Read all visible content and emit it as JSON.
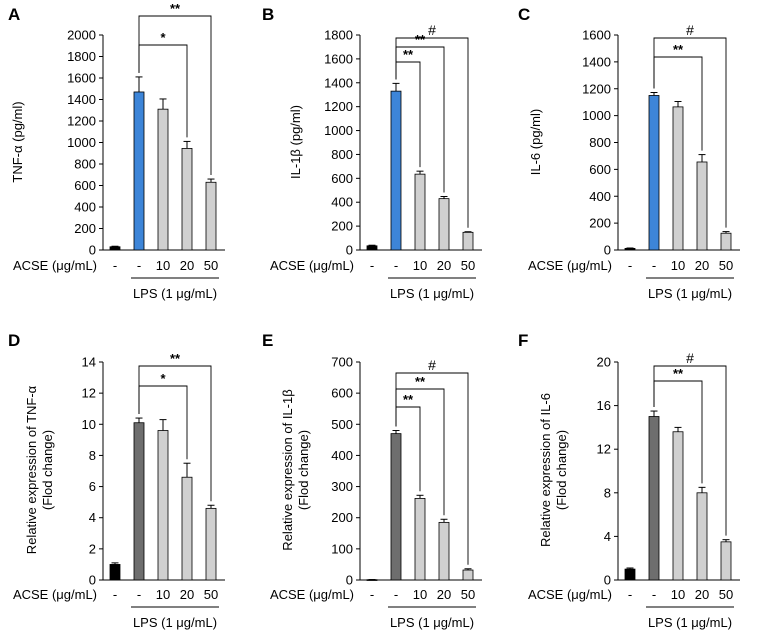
{
  "chart_data": [
    {
      "panel": "A",
      "type": "bar",
      "ylabel": "TNF-α (pg/ml)",
      "yticks": [
        "0",
        "200",
        "400",
        "600",
        "800",
        "1000",
        "1200",
        "1400",
        "1600",
        "1800",
        "2000"
      ],
      "ylim": [
        0,
        2000
      ],
      "row_label": "ACSE (μg/mL)",
      "group_label": "LPS (1 μg/mL)",
      "categories": [
        "-",
        "-",
        "10",
        "20",
        "50"
      ],
      "values": [
        30,
        1470,
        1310,
        945,
        630
      ],
      "errors": [
        5,
        140,
        95,
        65,
        30
      ],
      "colors": [
        "#000000",
        "#3d85d8",
        "#d0d0d0",
        "#d0d0d0",
        "#d0d0d0"
      ],
      "brackets": [
        {
          "from": 1,
          "to": 3,
          "label": "*"
        },
        {
          "from": 1,
          "to": 4,
          "label": "**"
        }
      ]
    },
    {
      "panel": "B",
      "type": "bar",
      "ylabel": "IL-1β (pg/ml)",
      "yticks": [
        "0",
        "200",
        "400",
        "600",
        "800",
        "1000",
        "1200",
        "1400",
        "1600",
        "1800"
      ],
      "ylim": [
        0,
        1800
      ],
      "row_label": "ACSE (μg/mL)",
      "group_label": "LPS (1 μg/mL)",
      "categories": [
        "-",
        "-",
        "10",
        "20",
        "50"
      ],
      "values": [
        35,
        1330,
        635,
        430,
        148
      ],
      "errors": [
        5,
        65,
        25,
        18,
        5
      ],
      "colors": [
        "#000000",
        "#3d85d8",
        "#d0d0d0",
        "#d0d0d0",
        "#d0d0d0"
      ],
      "brackets": [
        {
          "from": 1,
          "to": 2,
          "label": "**"
        },
        {
          "from": 1,
          "to": 3,
          "label": "**"
        },
        {
          "from": 1,
          "to": 4,
          "label": "#"
        }
      ]
    },
    {
      "panel": "C",
      "type": "bar",
      "ylabel": "IL-6 (pg/ml)",
      "yticks": [
        "0",
        "200",
        "400",
        "600",
        "800",
        "1000",
        "1200",
        "1400",
        "1600"
      ],
      "ylim": [
        0,
        1600
      ],
      "row_label": "ACSE (μg/mL)",
      "group_label": "LPS (1 μg/mL)",
      "categories": [
        "-",
        "-",
        "10",
        "20",
        "50"
      ],
      "values": [
        12,
        1150,
        1065,
        655,
        125
      ],
      "errors": [
        3,
        22,
        40,
        55,
        12
      ],
      "colors": [
        "#000000",
        "#3d85d8",
        "#d0d0d0",
        "#d0d0d0",
        "#d0d0d0"
      ],
      "brackets": [
        {
          "from": 1,
          "to": 3,
          "label": "**"
        },
        {
          "from": 1,
          "to": 4,
          "label": "#"
        }
      ]
    },
    {
      "panel": "D",
      "type": "bar",
      "ylabel": "Relative expression of TNF-α (Flod change)",
      "ylabel_lines": [
        "Relative expression of TNF-α",
        "(Flod change)"
      ],
      "yticks": [
        "0",
        "2",
        "4",
        "6",
        "8",
        "10",
        "12",
        "14"
      ],
      "ylim": [
        0,
        14
      ],
      "row_label": "ACSE (μg/mL)",
      "group_label": "LPS (1 μg/mL)",
      "categories": [
        "-",
        "-",
        "10",
        "20",
        "50"
      ],
      "values": [
        1.0,
        10.1,
        9.6,
        6.6,
        4.6
      ],
      "errors": [
        0.1,
        0.3,
        0.7,
        0.9,
        0.2
      ],
      "colors": [
        "#000000",
        "#6e6e6e",
        "#d0d0d0",
        "#d0d0d0",
        "#d0d0d0"
      ],
      "brackets": [
        {
          "from": 1,
          "to": 3,
          "label": "*"
        },
        {
          "from": 1,
          "to": 4,
          "label": "**"
        }
      ]
    },
    {
      "panel": "E",
      "type": "bar",
      "ylabel": "Relative expression of IL-1β (Flod change)",
      "ylabel_lines": [
        "Relative expression of IL-1β",
        "(Flod change)"
      ],
      "yticks": [
        "0",
        "100",
        "200",
        "300",
        "400",
        "500",
        "600",
        "700"
      ],
      "ylim": [
        0,
        700
      ],
      "row_label": "ACSE (μg/mL)",
      "group_label": "LPS (1 μg/mL)",
      "categories": [
        "-",
        "-",
        "10",
        "20",
        "50"
      ],
      "values": [
        1,
        470,
        262,
        185,
        32
      ],
      "errors": [
        0.5,
        10,
        10,
        10,
        4
      ],
      "colors": [
        "#000000",
        "#6e6e6e",
        "#d0d0d0",
        "#d0d0d0",
        "#d0d0d0"
      ],
      "brackets": [
        {
          "from": 1,
          "to": 2,
          "label": "**"
        },
        {
          "from": 1,
          "to": 3,
          "label": "**"
        },
        {
          "from": 1,
          "to": 4,
          "label": "#"
        }
      ]
    },
    {
      "panel": "F",
      "type": "bar",
      "ylabel": "Relative expression of IL-6 (Flod change)",
      "ylabel_lines": [
        "Relative expression of IL-6",
        "(Flod change)"
      ],
      "yticks": [
        "0",
        "4",
        "8",
        "12",
        "16",
        "20"
      ],
      "ylim": [
        0,
        20
      ],
      "row_label": "ACSE (μg/mL)",
      "group_label": "LPS (1 μg/mL)",
      "categories": [
        "-",
        "-",
        "10",
        "20",
        "50"
      ],
      "values": [
        1.0,
        15.0,
        13.6,
        8.0,
        3.5
      ],
      "errors": [
        0.1,
        0.5,
        0.4,
        0.5,
        0.2
      ],
      "colors": [
        "#000000",
        "#6e6e6e",
        "#d0d0d0",
        "#d0d0d0",
        "#d0d0d0"
      ],
      "brackets": [
        {
          "from": 1,
          "to": 3,
          "label": "**"
        },
        {
          "from": 1,
          "to": 4,
          "label": "#"
        }
      ]
    }
  ]
}
